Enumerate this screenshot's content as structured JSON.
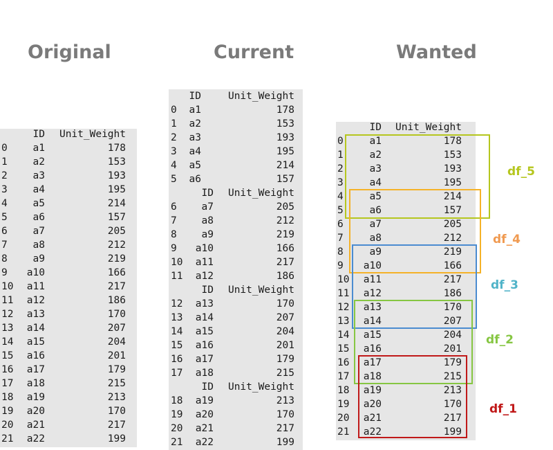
{
  "headings": {
    "original": "Original",
    "current": "Current",
    "wanted": "Wanted"
  },
  "columns": {
    "id": "ID",
    "weight": "Unit_Weight"
  },
  "rows": [
    {
      "idx": "0",
      "id": "a1",
      "w": "178"
    },
    {
      "idx": "1",
      "id": "a2",
      "w": "153"
    },
    {
      "idx": "2",
      "id": "a3",
      "w": "193"
    },
    {
      "idx": "3",
      "id": "a4",
      "w": "195"
    },
    {
      "idx": "4",
      "id": "a5",
      "w": "214"
    },
    {
      "idx": "5",
      "id": "a6",
      "w": "157"
    },
    {
      "idx": "6",
      "id": "a7",
      "w": "205"
    },
    {
      "idx": "7",
      "id": "a8",
      "w": "212"
    },
    {
      "idx": "8",
      "id": "a9",
      "w": "219"
    },
    {
      "idx": "9",
      "id": "a10",
      "w": "166"
    },
    {
      "idx": "10",
      "id": "a11",
      "w": "217"
    },
    {
      "idx": "11",
      "id": "a12",
      "w": "186"
    },
    {
      "idx": "12",
      "id": "a13",
      "w": "170"
    },
    {
      "idx": "13",
      "id": "a14",
      "w": "207"
    },
    {
      "idx": "14",
      "id": "a15",
      "w": "204"
    },
    {
      "idx": "15",
      "id": "a16",
      "w": "201"
    },
    {
      "idx": "16",
      "id": "a17",
      "w": "179"
    },
    {
      "idx": "17",
      "id": "a18",
      "w": "215"
    },
    {
      "idx": "18",
      "id": "a19",
      "w": "213"
    },
    {
      "idx": "19",
      "id": "a20",
      "w": "170"
    },
    {
      "idx": "20",
      "id": "a21",
      "w": "217"
    },
    {
      "idx": "21",
      "id": "a22",
      "w": "199"
    }
  ],
  "current_chunks": [
    [
      0,
      6
    ],
    [
      6,
      12
    ],
    [
      12,
      18
    ],
    [
      18,
      22
    ]
  ],
  "groups": [
    {
      "name": "df_5",
      "color": "#b5c61e",
      "rows": [
        0,
        5
      ]
    },
    {
      "name": "df_4",
      "color": "#f5b228",
      "rows": [
        4,
        9
      ]
    },
    {
      "name": "df_3",
      "color": "#4a8bd0",
      "rows": [
        8,
        13
      ]
    },
    {
      "name": "df_2",
      "color": "#86c642",
      "rows": [
        12,
        17
      ]
    },
    {
      "name": "df_1",
      "color": "#c01818",
      "rows": [
        16,
        21
      ]
    }
  ],
  "label_colors": {
    "df_5": "#b5c61e",
    "df_4": "#f09a50",
    "df_3": "#4fb3c8",
    "df_2": "#86c642",
    "df_1": "#c01818"
  }
}
